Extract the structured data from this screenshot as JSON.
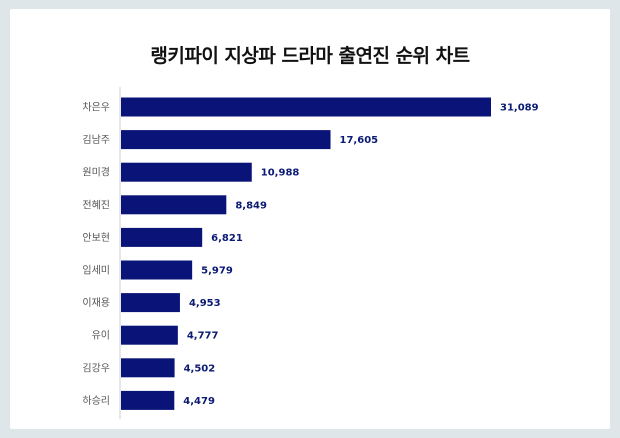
{
  "header": {
    "title": "랭키파이 지상파 드라마 출연진 순위 차트"
  },
  "colors": {
    "bar": "#0a1478",
    "value_text": "#0b1a73",
    "axis": "#cccccc",
    "background": "#dfe6ea"
  },
  "chart_data": {
    "type": "bar",
    "orientation": "horizontal",
    "title": "랭키파이 지상파 드라마 출연진 순위 차트",
    "xlabel": "",
    "ylabel": "",
    "categories": [
      "차은우",
      "김남주",
      "원미경",
      "전혜진",
      "안보현",
      "임세미",
      "이재용",
      "유이",
      "김강우",
      "하승리"
    ],
    "values": [
      31089,
      17605,
      10988,
      8849,
      6821,
      5979,
      4953,
      4777,
      4502,
      4479
    ],
    "value_labels": [
      "31,089",
      "17,605",
      "10,988",
      "8,849",
      "6,821",
      "5,979",
      "4,953",
      "4,777",
      "4,502",
      "4,479"
    ],
    "xlim": [
      0,
      31089
    ],
    "grid": false,
    "legend": "none"
  }
}
